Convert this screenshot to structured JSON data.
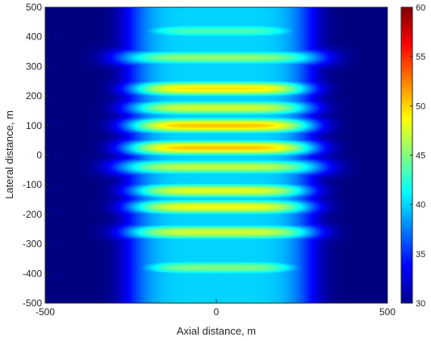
{
  "chart_data": {
    "type": "heatmap",
    "title": "",
    "xlabel": "Axial distance, m",
    "ylabel": "Lateral distance, m",
    "xlim": [
      -500,
      500
    ],
    "ylim": [
      -500,
      500
    ],
    "xticks": [
      -500,
      0,
      500
    ],
    "yticks": [
      -500,
      -400,
      -300,
      -200,
      -100,
      0,
      100,
      200,
      300,
      400,
      500
    ],
    "colorbar": {
      "min": 30,
      "max": 60,
      "ticks": [
        30,
        35,
        40,
        45,
        50,
        55,
        60
      ]
    },
    "colormap": "jet",
    "field": {
      "background": 30,
      "beam_half_width_x": 230,
      "bands": [
        {
          "y": 420,
          "peak": 43.5,
          "half_width": 245
        },
        {
          "y": 330,
          "peak": 45.5,
          "half_width": 300
        },
        {
          "y": 225,
          "peak": 49.5,
          "half_width": 265
        },
        {
          "y": 160,
          "peak": 47.5,
          "half_width": 270
        },
        {
          "y": 100,
          "peak": 50.5,
          "half_width": 275
        },
        {
          "y": 25,
          "peak": 50.5,
          "half_width": 280
        },
        {
          "y": -40,
          "peak": 47,
          "half_width": 300
        },
        {
          "y": -120,
          "peak": 48,
          "half_width": 265
        },
        {
          "y": -175,
          "peak": 48.5,
          "half_width": 270
        },
        {
          "y": -260,
          "peak": 47.5,
          "half_width": 280
        },
        {
          "y": -380,
          "peak": 45,
          "half_width": 245
        }
      ]
    }
  }
}
